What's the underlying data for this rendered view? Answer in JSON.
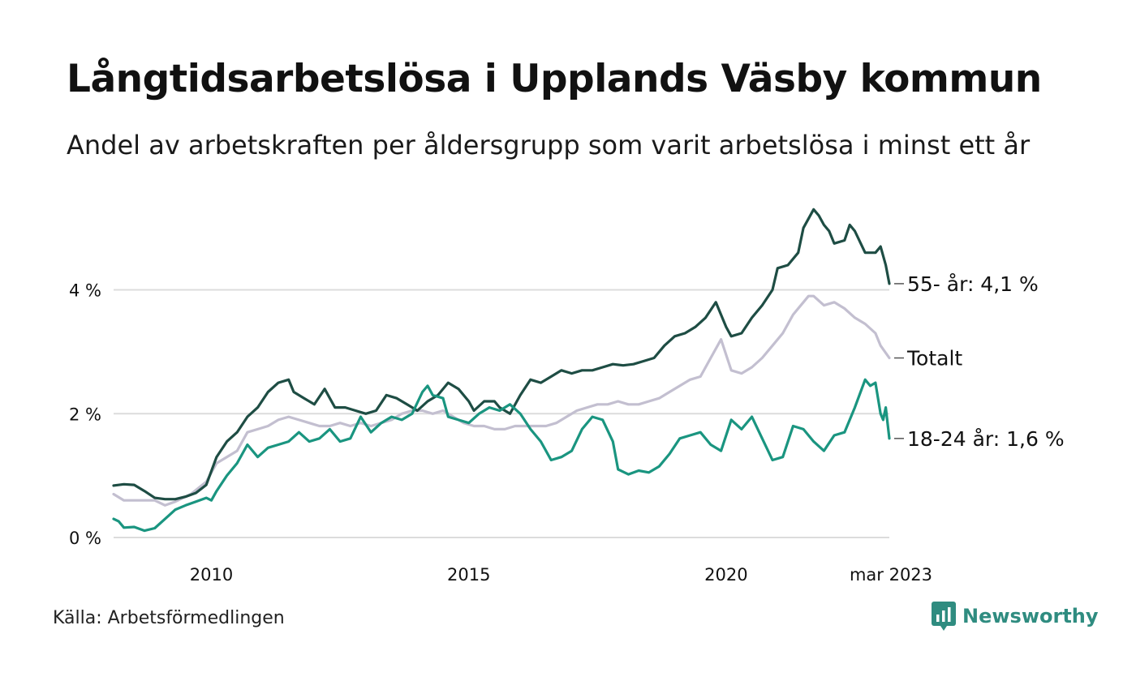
{
  "header": {
    "title": "Långtidsarbetslösa i Upplands Väsby kommun",
    "subtitle": "Andel av arbetskraften per åldersgrupp som varit arbetslösa i minst ett år"
  },
  "footer": {
    "source": "Källa: Arbetsförmedlingen",
    "brand": "Newsworthy",
    "brand_color": "#2f8c80"
  },
  "chart_data": {
    "type": "line",
    "xlim": [
      2008.1,
      2023.17
    ],
    "ylim": [
      0,
      5.5
    ],
    "grid": true,
    "x_ticks": [
      {
        "value": 2010,
        "label": "2010"
      },
      {
        "value": 2015,
        "label": "2015"
      },
      {
        "value": 2020,
        "label": "2020"
      },
      {
        "value": 2023.17,
        "label": "mar 2023"
      }
    ],
    "y_ticks": [
      {
        "value": 0,
        "label": "0 %"
      },
      {
        "value": 2,
        "label": "2 %"
      },
      {
        "value": 4,
        "label": "4 %"
      }
    ],
    "series": [
      {
        "key": "totalt",
        "end_label": "Totalt",
        "color": "#c3bfd0",
        "points": [
          [
            2008.1,
            0.7
          ],
          [
            2008.3,
            0.6
          ],
          [
            2008.6,
            0.6
          ],
          [
            2008.9,
            0.6
          ],
          [
            2009.1,
            0.52
          ],
          [
            2009.3,
            0.58
          ],
          [
            2009.6,
            0.7
          ],
          [
            2009.9,
            0.9
          ],
          [
            2010.1,
            1.2
          ],
          [
            2010.3,
            1.3
          ],
          [
            2010.5,
            1.4
          ],
          [
            2010.7,
            1.7
          ],
          [
            2010.9,
            1.75
          ],
          [
            2011.1,
            1.8
          ],
          [
            2011.3,
            1.9
          ],
          [
            2011.5,
            1.95
          ],
          [
            2011.7,
            1.9
          ],
          [
            2011.9,
            1.85
          ],
          [
            2012.1,
            1.8
          ],
          [
            2012.3,
            1.8
          ],
          [
            2012.5,
            1.85
          ],
          [
            2012.7,
            1.8
          ],
          [
            2012.9,
            1.85
          ],
          [
            2013.1,
            1.8
          ],
          [
            2013.3,
            1.85
          ],
          [
            2013.5,
            1.9
          ],
          [
            2013.7,
            2.0
          ],
          [
            2013.9,
            2.05
          ],
          [
            2014.1,
            2.05
          ],
          [
            2014.3,
            2.0
          ],
          [
            2014.5,
            2.05
          ],
          [
            2014.7,
            1.95
          ],
          [
            2014.9,
            1.85
          ],
          [
            2015.1,
            1.8
          ],
          [
            2015.3,
            1.8
          ],
          [
            2015.5,
            1.75
          ],
          [
            2015.7,
            1.75
          ],
          [
            2015.9,
            1.8
          ],
          [
            2016.1,
            1.8
          ],
          [
            2016.3,
            1.8
          ],
          [
            2016.5,
            1.8
          ],
          [
            2016.7,
            1.85
          ],
          [
            2016.9,
            1.95
          ],
          [
            2017.1,
            2.05
          ],
          [
            2017.3,
            2.1
          ],
          [
            2017.5,
            2.15
          ],
          [
            2017.7,
            2.15
          ],
          [
            2017.9,
            2.2
          ],
          [
            2018.1,
            2.15
          ],
          [
            2018.3,
            2.15
          ],
          [
            2018.5,
            2.2
          ],
          [
            2018.7,
            2.25
          ],
          [
            2018.9,
            2.35
          ],
          [
            2019.1,
            2.45
          ],
          [
            2019.3,
            2.55
          ],
          [
            2019.5,
            2.6
          ],
          [
            2019.7,
            2.9
          ],
          [
            2019.9,
            3.2
          ],
          [
            2020.0,
            2.95
          ],
          [
            2020.1,
            2.7
          ],
          [
            2020.3,
            2.65
          ],
          [
            2020.5,
            2.75
          ],
          [
            2020.7,
            2.9
          ],
          [
            2020.9,
            3.1
          ],
          [
            2021.1,
            3.3
          ],
          [
            2021.3,
            3.6
          ],
          [
            2021.5,
            3.8
          ],
          [
            2021.6,
            3.9
          ],
          [
            2021.7,
            3.9
          ],
          [
            2021.9,
            3.75
          ],
          [
            2022.1,
            3.8
          ],
          [
            2022.3,
            3.7
          ],
          [
            2022.5,
            3.55
          ],
          [
            2022.7,
            3.45
          ],
          [
            2022.9,
            3.3
          ],
          [
            2023.0,
            3.1
          ],
          [
            2023.17,
            2.9
          ]
        ]
      },
      {
        "key": "55",
        "end_label": "55- år: 4,1 %",
        "color": "#1e4d44",
        "points": [
          [
            2008.1,
            0.84
          ],
          [
            2008.3,
            0.86
          ],
          [
            2008.5,
            0.85
          ],
          [
            2008.7,
            0.75
          ],
          [
            2008.9,
            0.64
          ],
          [
            2009.1,
            0.62
          ],
          [
            2009.3,
            0.62
          ],
          [
            2009.5,
            0.66
          ],
          [
            2009.7,
            0.72
          ],
          [
            2009.9,
            0.85
          ],
          [
            2010.1,
            1.3
          ],
          [
            2010.3,
            1.55
          ],
          [
            2010.5,
            1.7
          ],
          [
            2010.7,
            1.95
          ],
          [
            2010.9,
            2.1
          ],
          [
            2011.1,
            2.35
          ],
          [
            2011.3,
            2.5
          ],
          [
            2011.5,
            2.55
          ],
          [
            2011.6,
            2.35
          ],
          [
            2011.8,
            2.25
          ],
          [
            2012.0,
            2.15
          ],
          [
            2012.2,
            2.4
          ],
          [
            2012.4,
            2.1
          ],
          [
            2012.6,
            2.1
          ],
          [
            2012.8,
            2.05
          ],
          [
            2013.0,
            2.0
          ],
          [
            2013.2,
            2.05
          ],
          [
            2013.4,
            2.3
          ],
          [
            2013.6,
            2.25
          ],
          [
            2013.8,
            2.15
          ],
          [
            2014.0,
            2.05
          ],
          [
            2014.2,
            2.2
          ],
          [
            2014.4,
            2.3
          ],
          [
            2014.6,
            2.5
          ],
          [
            2014.8,
            2.4
          ],
          [
            2015.0,
            2.2
          ],
          [
            2015.1,
            2.05
          ],
          [
            2015.3,
            2.2
          ],
          [
            2015.5,
            2.2
          ],
          [
            2015.6,
            2.1
          ],
          [
            2015.8,
            2.0
          ],
          [
            2016.0,
            2.3
          ],
          [
            2016.2,
            2.55
          ],
          [
            2016.4,
            2.5
          ],
          [
            2016.6,
            2.6
          ],
          [
            2016.8,
            2.7
          ],
          [
            2017.0,
            2.65
          ],
          [
            2017.2,
            2.7
          ],
          [
            2017.4,
            2.7
          ],
          [
            2017.6,
            2.75
          ],
          [
            2017.8,
            2.8
          ],
          [
            2018.0,
            2.78
          ],
          [
            2018.2,
            2.8
          ],
          [
            2018.4,
            2.85
          ],
          [
            2018.6,
            2.9
          ],
          [
            2018.8,
            3.1
          ],
          [
            2019.0,
            3.25
          ],
          [
            2019.2,
            3.3
          ],
          [
            2019.4,
            3.4
          ],
          [
            2019.6,
            3.55
          ],
          [
            2019.8,
            3.8
          ],
          [
            2020.0,
            3.4
          ],
          [
            2020.1,
            3.25
          ],
          [
            2020.3,
            3.3
          ],
          [
            2020.5,
            3.55
          ],
          [
            2020.7,
            3.75
          ],
          [
            2020.9,
            4.0
          ],
          [
            2021.0,
            4.35
          ],
          [
            2021.2,
            4.4
          ],
          [
            2021.4,
            4.6
          ],
          [
            2021.5,
            5.0
          ],
          [
            2021.7,
            5.3
          ],
          [
            2021.8,
            5.2
          ],
          [
            2021.9,
            5.05
          ],
          [
            2022.0,
            4.95
          ],
          [
            2022.1,
            4.75
          ],
          [
            2022.3,
            4.8
          ],
          [
            2022.4,
            5.05
          ],
          [
            2022.5,
            4.95
          ],
          [
            2022.7,
            4.6
          ],
          [
            2022.9,
            4.6
          ],
          [
            2023.0,
            4.7
          ],
          [
            2023.1,
            4.4
          ],
          [
            2023.17,
            4.1
          ]
        ]
      },
      {
        "key": "18_24",
        "end_label": "18-24 år: 1,6 %",
        "color": "#1a9580",
        "points": [
          [
            2008.1,
            0.3
          ],
          [
            2008.2,
            0.26
          ],
          [
            2008.3,
            0.16
          ],
          [
            2008.5,
            0.17
          ],
          [
            2008.7,
            0.11
          ],
          [
            2008.9,
            0.15
          ],
          [
            2009.1,
            0.3
          ],
          [
            2009.3,
            0.45
          ],
          [
            2009.5,
            0.52
          ],
          [
            2009.7,
            0.58
          ],
          [
            2009.9,
            0.64
          ],
          [
            2010.0,
            0.6
          ],
          [
            2010.1,
            0.75
          ],
          [
            2010.3,
            1.0
          ],
          [
            2010.5,
            1.2
          ],
          [
            2010.7,
            1.5
          ],
          [
            2010.9,
            1.3
          ],
          [
            2011.1,
            1.45
          ],
          [
            2011.3,
            1.5
          ],
          [
            2011.5,
            1.55
          ],
          [
            2011.7,
            1.7
          ],
          [
            2011.9,
            1.55
          ],
          [
            2012.1,
            1.6
          ],
          [
            2012.3,
            1.75
          ],
          [
            2012.5,
            1.55
          ],
          [
            2012.7,
            1.6
          ],
          [
            2012.9,
            1.95
          ],
          [
            2013.1,
            1.7
          ],
          [
            2013.3,
            1.85
          ],
          [
            2013.5,
            1.95
          ],
          [
            2013.7,
            1.9
          ],
          [
            2013.9,
            2.0
          ],
          [
            2014.1,
            2.35
          ],
          [
            2014.2,
            2.45
          ],
          [
            2014.3,
            2.3
          ],
          [
            2014.5,
            2.25
          ],
          [
            2014.6,
            1.95
          ],
          [
            2014.8,
            1.9
          ],
          [
            2015.0,
            1.85
          ],
          [
            2015.2,
            2.0
          ],
          [
            2015.4,
            2.1
          ],
          [
            2015.6,
            2.05
          ],
          [
            2015.8,
            2.15
          ],
          [
            2016.0,
            2.0
          ],
          [
            2016.2,
            1.75
          ],
          [
            2016.4,
            1.55
          ],
          [
            2016.6,
            1.25
          ],
          [
            2016.8,
            1.3
          ],
          [
            2017.0,
            1.4
          ],
          [
            2017.2,
            1.75
          ],
          [
            2017.4,
            1.95
          ],
          [
            2017.6,
            1.9
          ],
          [
            2017.8,
            1.55
          ],
          [
            2017.9,
            1.1
          ],
          [
            2018.1,
            1.02
          ],
          [
            2018.3,
            1.08
          ],
          [
            2018.5,
            1.05
          ],
          [
            2018.7,
            1.15
          ],
          [
            2018.9,
            1.35
          ],
          [
            2019.1,
            1.6
          ],
          [
            2019.3,
            1.65
          ],
          [
            2019.5,
            1.7
          ],
          [
            2019.7,
            1.5
          ],
          [
            2019.9,
            1.4
          ],
          [
            2020.1,
            1.9
          ],
          [
            2020.3,
            1.75
          ],
          [
            2020.5,
            1.95
          ],
          [
            2020.7,
            1.6
          ],
          [
            2020.9,
            1.25
          ],
          [
            2021.1,
            1.3
          ],
          [
            2021.3,
            1.8
          ],
          [
            2021.5,
            1.75
          ],
          [
            2021.7,
            1.55
          ],
          [
            2021.9,
            1.4
          ],
          [
            2022.1,
            1.65
          ],
          [
            2022.3,
            1.7
          ],
          [
            2022.5,
            2.1
          ],
          [
            2022.7,
            2.55
          ],
          [
            2022.8,
            2.45
          ],
          [
            2022.9,
            2.5
          ],
          [
            2023.0,
            2.0
          ],
          [
            2023.05,
            1.9
          ],
          [
            2023.1,
            2.1
          ],
          [
            2023.17,
            1.6
          ]
        ]
      }
    ]
  }
}
